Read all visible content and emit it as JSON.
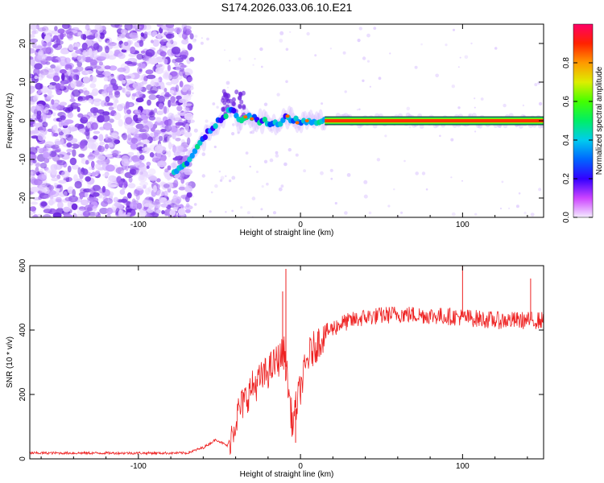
{
  "title": "S174.2026.033.06.10.E21",
  "chart_data": [
    {
      "type": "heatmap",
      "name": "spectrogram",
      "xlabel": "Height of straight line (km)",
      "ylabel": "Frequency (Hz)",
      "xlim": [
        -167,
        150
      ],
      "ylim": [
        -25,
        25
      ],
      "x_ticks": [
        -100,
        0,
        100
      ],
      "y_ticks": [
        -20,
        -10,
        0,
        10,
        20
      ],
      "colorbar": {
        "label": "Normalized spectral amplitude",
        "range": [
          0.0,
          1.0
        ],
        "ticks": [
          0.0,
          0.2,
          0.4,
          0.6,
          0.8
        ]
      },
      "signal_track": {
        "description_points_km_hz": [
          {
            "x": -78,
            "y": -13
          },
          {
            "x": -70,
            "y": -11
          },
          {
            "x": -62,
            "y": -6
          },
          {
            "x": -55,
            "y": -2
          },
          {
            "x": -48,
            "y": 1
          },
          {
            "x": -42,
            "y": 3
          },
          {
            "x": -38,
            "y": 0
          },
          {
            "x": -33,
            "y": 1
          },
          {
            "x": -25,
            "y": 0
          },
          {
            "x": -15,
            "y": -1
          },
          {
            "x": -8,
            "y": 1
          },
          {
            "x": 0,
            "y": -0.5
          },
          {
            "x": 15,
            "y": 0
          },
          {
            "x": 150,
            "y": 0
          }
        ],
        "noise_below_km": -70
      }
    },
    {
      "type": "line",
      "name": "snr",
      "xlabel": "Height of straight line (km)",
      "ylabel": "SNR (10 * v/v)",
      "xlim": [
        -167,
        150
      ],
      "ylim": [
        0,
        600
      ],
      "x_ticks": [
        -100,
        0,
        100
      ],
      "y_ticks": [
        0,
        200,
        400,
        600
      ],
      "color": "#ee2222",
      "envelope": [
        {
          "x": -167,
          "y": 18
        },
        {
          "x": -70,
          "y": 18
        },
        {
          "x": -60,
          "y": 35
        },
        {
          "x": -52,
          "y": 60
        },
        {
          "x": -45,
          "y": 40
        },
        {
          "x": -38,
          "y": 150
        },
        {
          "x": -30,
          "y": 220
        },
        {
          "x": -22,
          "y": 260
        },
        {
          "x": -15,
          "y": 300
        },
        {
          "x": -10,
          "y": 330
        },
        {
          "x": -5,
          "y": 110
        },
        {
          "x": 0,
          "y": 220
        },
        {
          "x": 5,
          "y": 320
        },
        {
          "x": 15,
          "y": 390
        },
        {
          "x": 25,
          "y": 420
        },
        {
          "x": 40,
          "y": 440
        },
        {
          "x": 60,
          "y": 450
        },
        {
          "x": 80,
          "y": 445
        },
        {
          "x": 100,
          "y": 440
        },
        {
          "x": 120,
          "y": 430
        },
        {
          "x": 150,
          "y": 430
        }
      ],
      "spikes": [
        {
          "x": -9,
          "y": 590
        },
        {
          "x": -11,
          "y": 520
        },
        {
          "x": 100,
          "y": 600
        },
        {
          "x": 142,
          "y": 560
        },
        {
          "x": -3,
          "y": 50
        }
      ]
    }
  ]
}
